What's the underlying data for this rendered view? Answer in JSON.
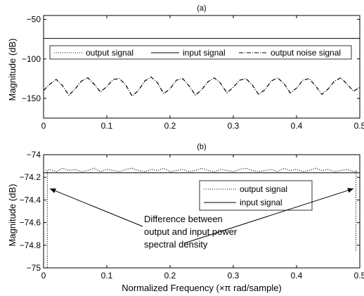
{
  "chart_data": [
    {
      "id": "a",
      "type": "line",
      "title": "(a)",
      "xlabel": "",
      "ylabel": "Magnitude (dB)",
      "xlim": [
        0,
        0.5
      ],
      "ylim": [
        -175,
        -45
      ],
      "xticks": [
        0,
        0.1,
        0.2,
        0.3,
        0.4,
        0.5
      ],
      "xtick_labels": [
        "0",
        "0.1",
        "0.2",
        "0.3",
        "0.4",
        "0.5"
      ],
      "yticks": [
        -50,
        -100,
        -150
      ],
      "ytick_labels": [
        "−50",
        "−100",
        "−150"
      ],
      "grid": false,
      "legend": {
        "placement": "center",
        "orientation": "horizontal",
        "entries": [
          {
            "label": "output signal",
            "style": "dotted"
          },
          {
            "label": "input signal",
            "style": "solid"
          },
          {
            "label": "output noise signal",
            "style": "dashdot"
          }
        ]
      },
      "series": [
        {
          "name": "input signal",
          "style": "solid",
          "x": [
            0,
            0.5
          ],
          "y": [
            -74,
            -74
          ]
        },
        {
          "name": "output noise signal",
          "style": "dashdot",
          "x": [
            0,
            0.01,
            0.02,
            0.03,
            0.04,
            0.05,
            0.06,
            0.07,
            0.08,
            0.09,
            0.1,
            0.11,
            0.12,
            0.13,
            0.14,
            0.15,
            0.16,
            0.17,
            0.18,
            0.19,
            0.2,
            0.21,
            0.22,
            0.23,
            0.24,
            0.25,
            0.26,
            0.27,
            0.28,
            0.29,
            0.3,
            0.31,
            0.32,
            0.33,
            0.34,
            0.35,
            0.36,
            0.37,
            0.38,
            0.39,
            0.4,
            0.41,
            0.42,
            0.43,
            0.44,
            0.45,
            0.46,
            0.47,
            0.48,
            0.49,
            0.5
          ],
          "y": [
            -140,
            -132,
            -126,
            -134,
            -146,
            -138,
            -128,
            -124,
            -132,
            -142,
            -135,
            -126,
            -125,
            -133,
            -147,
            -140,
            -128,
            -123,
            -130,
            -144,
            -138,
            -127,
            -125,
            -134,
            -146,
            -139,
            -129,
            -124,
            -131,
            -143,
            -136,
            -127,
            -125,
            -133,
            -145,
            -139,
            -128,
            -124,
            -131,
            -143,
            -137,
            -127,
            -125,
            -134,
            -145,
            -138,
            -128,
            -124,
            -132,
            -141,
            -136
          ]
        }
      ]
    },
    {
      "id": "b",
      "type": "line",
      "title": "(b)",
      "xlabel": "Normalized Frequency  (×π rad/sample)",
      "ylabel": "Magnitude (dB)",
      "xlim": [
        0,
        0.5
      ],
      "ylim": [
        -75,
        -74
      ],
      "xticks": [
        0,
        0.1,
        0.2,
        0.3,
        0.4,
        0.5
      ],
      "xtick_labels": [
        "0",
        "0.1",
        "0.2",
        "0.3",
        "0.4",
        "0.5"
      ],
      "yticks": [
        -74,
        -74.2,
        -74.4,
        -74.6,
        -74.8,
        -75
      ],
      "ytick_labels": [
        "−74",
        "−74.2",
        "−74.4",
        "−74.6",
        "−74.8",
        "−75"
      ],
      "grid": false,
      "legend": {
        "placement": "right",
        "orientation": "vertical",
        "entries": [
          {
            "label": "output signal",
            "style": "dotted"
          },
          {
            "label": "input signal",
            "style": "solid"
          }
        ]
      },
      "annotation": {
        "lines": [
          "Difference between",
          "output and input power",
          "spectral density"
        ],
        "arrow_targets": [
          [
            0.01,
            -74.3
          ],
          [
            0.49,
            -74.3
          ]
        ]
      },
      "series": [
        {
          "name": "input signal",
          "style": "solid",
          "x": [
            0,
            0.5
          ],
          "y": [
            -74.16,
            -74.16
          ]
        },
        {
          "name": "output signal",
          "style": "dotted",
          "x": [
            0.004,
            0.01,
            0.02,
            0.03,
            0.04,
            0.05,
            0.06,
            0.07,
            0.08,
            0.09,
            0.1,
            0.11,
            0.12,
            0.13,
            0.14,
            0.15,
            0.16,
            0.17,
            0.18,
            0.19,
            0.2,
            0.21,
            0.22,
            0.23,
            0.24,
            0.25,
            0.26,
            0.27,
            0.28,
            0.29,
            0.3,
            0.31,
            0.32,
            0.33,
            0.34,
            0.35,
            0.36,
            0.37,
            0.38,
            0.39,
            0.4,
            0.41,
            0.42,
            0.43,
            0.44,
            0.45,
            0.46,
            0.47,
            0.48,
            0.49,
            0.496
          ],
          "y": [
            -74.14,
            -74.13,
            -74.15,
            -74.12,
            -74.14,
            -74.13,
            -74.15,
            -74.14,
            -74.12,
            -74.15,
            -74.13,
            -74.14,
            -74.15,
            -74.13,
            -74.12,
            -74.14,
            -74.15,
            -74.13,
            -74.14,
            -74.12,
            -74.15,
            -74.14,
            -74.13,
            -74.15,
            -74.14,
            -74.12,
            -74.14,
            -74.15,
            -74.13,
            -74.14,
            -74.15,
            -74.13,
            -74.12,
            -74.14,
            -74.15,
            -74.14,
            -74.13,
            -74.15,
            -74.12,
            -74.14,
            -74.13,
            -74.15,
            -74.14,
            -74.12,
            -74.14,
            -74.13,
            -74.15,
            -74.14,
            -74.13,
            -74.15,
            -74.14
          ]
        },
        {
          "name": "output signal",
          "style": "dotted",
          "x": [
            0.006,
            0.006
          ],
          "y": [
            -74.15,
            -75
          ]
        },
        {
          "name": "output signal",
          "style": "dotted",
          "x": [
            0.494,
            0.494
          ],
          "y": [
            -74.15,
            -74.85
          ]
        }
      ]
    }
  ]
}
